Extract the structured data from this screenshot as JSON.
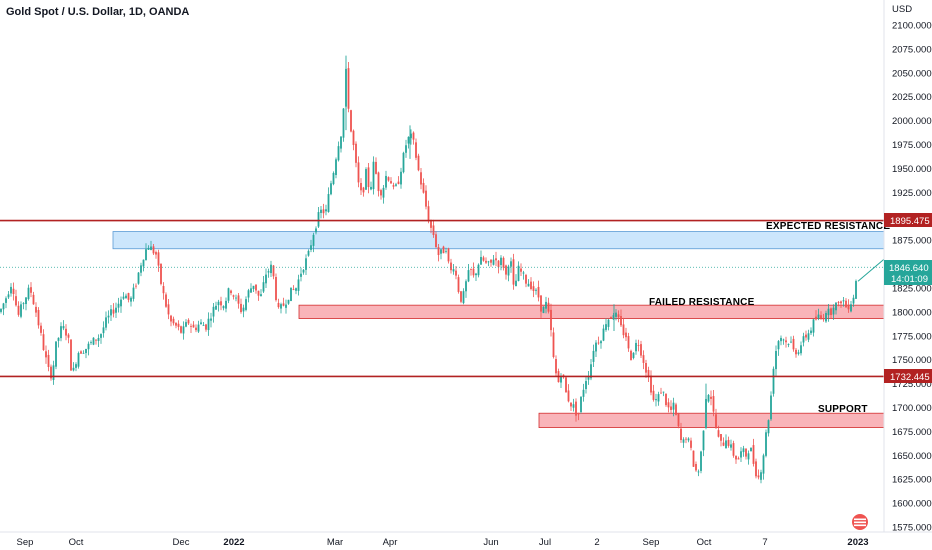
{
  "chart_data": {
    "type": "candlestick",
    "title": "Gold Spot / U.S. Dollar, 1D, OANDA",
    "currency_label": "USD",
    "ylim": [
      1568,
      2108
    ],
    "y_ticks": [
      "2100.000",
      "2075.000",
      "2050.000",
      "2025.000",
      "2000.000",
      "1975.000",
      "1950.000",
      "1925.000",
      "1875.000",
      "1850.000",
      "1825.000",
      "1800.000",
      "1775.000",
      "1750.000",
      "1725.000",
      "1700.000",
      "1675.000",
      "1650.000",
      "1625.000",
      "1600.000",
      "1575.000"
    ],
    "x_ticks": [
      {
        "label": "Sep",
        "bold": false
      },
      {
        "label": "Oct",
        "bold": false
      },
      {
        "label": "Dec",
        "bold": false
      },
      {
        "label": "2022",
        "bold": true
      },
      {
        "label": "Mar",
        "bold": false
      },
      {
        "label": "Apr",
        "bold": false
      },
      {
        "label": "Jun",
        "bold": false
      },
      {
        "label": "Jul",
        "bold": false
      },
      {
        "label": "2",
        "bold": false
      },
      {
        "label": "Sep",
        "bold": false
      },
      {
        "label": "Oct",
        "bold": false
      },
      {
        "label": "7",
        "bold": false
      },
      {
        "label": "2023",
        "bold": true
      }
    ],
    "horizontal_lines": [
      {
        "name": "expected-resistance-line",
        "price": 1895.475,
        "badge": "1895.475",
        "color": "#b22222"
      },
      {
        "name": "support-line",
        "price": 1732.445,
        "badge": "1732.445",
        "color": "#b22222"
      }
    ],
    "current_price": {
      "price": 1846.64,
      "label": "1846.640",
      "countdown": "14:01:09",
      "color": "#26a69a"
    },
    "zones": [
      {
        "name": "expected-resistance-zone",
        "label": "EXPECTED RESISTANCE",
        "top": 1884,
        "bottom": 1866,
        "color": "#bbdefb",
        "border": "#5b9bd5"
      },
      {
        "name": "failed-resistance-zone",
        "label": "FAILED RESISTANCE",
        "top": 1807,
        "bottom": 1793,
        "color": "#f7a1a8",
        "border": "#d32f2f"
      },
      {
        "name": "support-zone",
        "label": "SUPPORT",
        "top": 1694,
        "bottom": 1679,
        "color": "#f7a1a8",
        "border": "#d32f2f"
      }
    ],
    "up_color": "#26a69a",
    "down_color": "#ef5350",
    "close_path": [
      [
        0,
        1800
      ],
      [
        6,
        1815
      ],
      [
        12,
        1832
      ],
      [
        18,
        1795
      ],
      [
        24,
        1812
      ],
      [
        30,
        1825
      ],
      [
        36,
        1800
      ],
      [
        42,
        1770
      ],
      [
        48,
        1740
      ],
      [
        52,
        1733
      ],
      [
        56,
        1765
      ],
      [
        62,
        1785
      ],
      [
        68,
        1775
      ],
      [
        72,
        1732
      ],
      [
        78,
        1758
      ],
      [
        86,
        1762
      ],
      [
        94,
        1770
      ],
      [
        100,
        1775
      ],
      [
        106,
        1790
      ],
      [
        112,
        1800
      ],
      [
        118,
        1808
      ],
      [
        124,
        1820
      ],
      [
        130,
        1810
      ],
      [
        136,
        1830
      ],
      [
        142,
        1855
      ],
      [
        148,
        1870
      ],
      [
        152,
        1865
      ],
      [
        156,
        1860
      ],
      [
        160,
        1835
      ],
      [
        164,
        1815
      ],
      [
        170,
        1790
      ],
      [
        176,
        1785
      ],
      [
        182,
        1778
      ],
      [
        188,
        1790
      ],
      [
        194,
        1782
      ],
      [
        200,
        1788
      ],
      [
        206,
        1785
      ],
      [
        212,
        1800
      ],
      [
        218,
        1812
      ],
      [
        224,
        1808
      ],
      [
        230,
        1825
      ],
      [
        236,
        1812
      ],
      [
        242,
        1800
      ],
      [
        248,
        1820
      ],
      [
        254,
        1830
      ],
      [
        260,
        1812
      ],
      [
        266,
        1840
      ],
      [
        272,
        1848
      ],
      [
        278,
        1800
      ],
      [
        284,
        1808
      ],
      [
        290,
        1820
      ],
      [
        296,
        1825
      ],
      [
        302,
        1845
      ],
      [
        308,
        1858
      ],
      [
        314,
        1885
      ],
      [
        320,
        1905
      ],
      [
        326,
        1905
      ],
      [
        330,
        1930
      ],
      [
        334,
        1950
      ],
      [
        338,
        1975
      ],
      [
        342,
        1990
      ],
      [
        346,
        2050
      ],
      [
        350,
        1995
      ],
      [
        354,
        1970
      ],
      [
        358,
        1935
      ],
      [
        362,
        1920
      ],
      [
        366,
        1945
      ],
      [
        370,
        1925
      ],
      [
        374,
        1958
      ],
      [
        378,
        1930
      ],
      [
        382,
        1925
      ],
      [
        386,
        1942
      ],
      [
        390,
        1940
      ],
      [
        394,
        1925
      ],
      [
        398,
        1935
      ],
      [
        402,
        1955
      ],
      [
        406,
        1975
      ],
      [
        410,
        1985
      ],
      [
        414,
        1975
      ],
      [
        418,
        1950
      ],
      [
        422,
        1930
      ],
      [
        426,
        1910
      ],
      [
        430,
        1890
      ],
      [
        434,
        1880
      ],
      [
        438,
        1860
      ],
      [
        442,
        1862
      ],
      [
        446,
        1868
      ],
      [
        450,
        1840
      ],
      [
        454,
        1850
      ],
      [
        458,
        1825
      ],
      [
        462,
        1810
      ],
      [
        466,
        1830
      ],
      [
        470,
        1845
      ],
      [
        474,
        1835
      ],
      [
        478,
        1850
      ],
      [
        482,
        1855
      ],
      [
        486,
        1850
      ],
      [
        490,
        1848
      ],
      [
        494,
        1858
      ],
      [
        498,
        1850
      ],
      [
        502,
        1855
      ],
      [
        506,
        1838
      ],
      [
        510,
        1860
      ],
      [
        514,
        1820
      ],
      [
        518,
        1845
      ],
      [
        522,
        1840
      ],
      [
        526,
        1832
      ],
      [
        530,
        1830
      ],
      [
        534,
        1822
      ],
      [
        538,
        1818
      ],
      [
        542,
        1800
      ],
      [
        546,
        1808
      ],
      [
        550,
        1790
      ],
      [
        554,
        1745
      ],
      [
        558,
        1725
      ],
      [
        562,
        1740
      ],
      [
        566,
        1715
      ],
      [
        570,
        1705
      ],
      [
        574,
        1700
      ],
      [
        578,
        1690
      ],
      [
        582,
        1715
      ],
      [
        586,
        1730
      ],
      [
        590,
        1740
      ],
      [
        594,
        1765
      ],
      [
        598,
        1770
      ],
      [
        602,
        1775
      ],
      [
        606,
        1790
      ],
      [
        610,
        1795
      ],
      [
        614,
        1800
      ],
      [
        618,
        1792
      ],
      [
        622,
        1780
      ],
      [
        626,
        1775
      ],
      [
        630,
        1750
      ],
      [
        634,
        1762
      ],
      [
        638,
        1770
      ],
      [
        642,
        1755
      ],
      [
        646,
        1740
      ],
      [
        650,
        1725
      ],
      [
        654,
        1705
      ],
      [
        658,
        1710
      ],
      [
        662,
        1720
      ],
      [
        666,
        1705
      ],
      [
        670,
        1695
      ],
      [
        674,
        1702
      ],
      [
        678,
        1680
      ],
      [
        682,
        1660
      ],
      [
        686,
        1670
      ],
      [
        690,
        1660
      ],
      [
        694,
        1638
      ],
      [
        698,
        1630
      ],
      [
        702,
        1660
      ],
      [
        706,
        1712
      ],
      [
        710,
        1718
      ],
      [
        714,
        1690
      ],
      [
        718,
        1668
      ],
      [
        722,
        1660
      ],
      [
        726,
        1668
      ],
      [
        730,
        1660
      ],
      [
        734,
        1650
      ],
      [
        738,
        1645
      ],
      [
        742,
        1655
      ],
      [
        746,
        1650
      ],
      [
        750,
        1660
      ],
      [
        754,
        1640
      ],
      [
        758,
        1625
      ],
      [
        762,
        1640
      ],
      [
        766,
        1672
      ],
      [
        770,
        1700
      ],
      [
        774,
        1750
      ],
      [
        778,
        1770
      ],
      [
        782,
        1775
      ],
      [
        786,
        1768
      ],
      [
        790,
        1770
      ],
      [
        794,
        1758
      ],
      [
        798,
        1760
      ],
      [
        802,
        1768
      ],
      [
        806,
        1775
      ],
      [
        810,
        1780
      ],
      [
        814,
        1790
      ],
      [
        818,
        1795
      ],
      [
        822,
        1792
      ],
      [
        826,
        1802
      ],
      [
        830,
        1798
      ],
      [
        834,
        1810
      ],
      [
        838,
        1805
      ],
      [
        842,
        1815
      ],
      [
        846,
        1805
      ],
      [
        850,
        1808
      ],
      [
        854,
        1818
      ],
      [
        858,
        1847
      ]
    ]
  },
  "labels": {
    "title": "Gold Spot / U.S. Dollar, 1D, OANDA",
    "usd": "USD",
    "expected_resistance": "EXPECTED RESISTANCE",
    "failed_resistance": "FAILED RESISTANCE",
    "support": "SUPPORT",
    "badge_upper": "1895.475",
    "badge_lower": "1732.445",
    "badge_current": "1846.640",
    "badge_countdown": "14:01:09"
  },
  "icons": [
    "tradingview-flag-icon"
  ]
}
